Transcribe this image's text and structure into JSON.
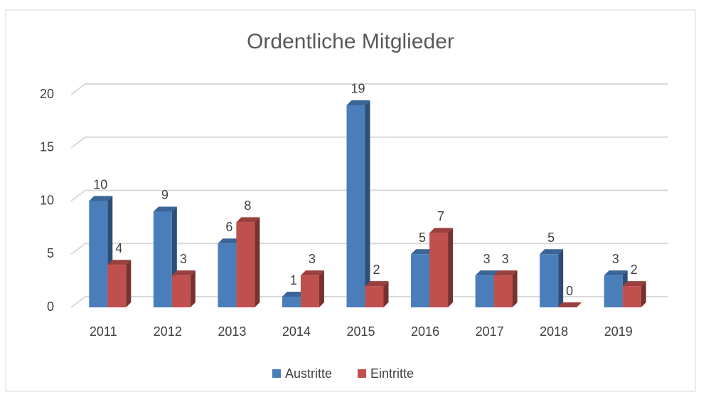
{
  "chart_data": {
    "type": "bar3d",
    "title": "Ordentliche Mitglieder",
    "categories": [
      "2011",
      "2012",
      "2013",
      "2014",
      "2015",
      "2016",
      "2017",
      "2018",
      "2019"
    ],
    "series": [
      {
        "name": "Austritte",
        "color": "#4a7ebb",
        "values": [
          10,
          9,
          6,
          1,
          19,
          5,
          3,
          5,
          3
        ]
      },
      {
        "name": "Eintritte",
        "color": "#c0504d",
        "values": [
          4,
          3,
          8,
          3,
          2,
          7,
          3,
          0,
          2
        ]
      }
    ],
    "ylim": [
      0,
      20
    ],
    "yticks": [
      0,
      5,
      10,
      15,
      20
    ],
    "grid": true,
    "legend": "bottom"
  }
}
